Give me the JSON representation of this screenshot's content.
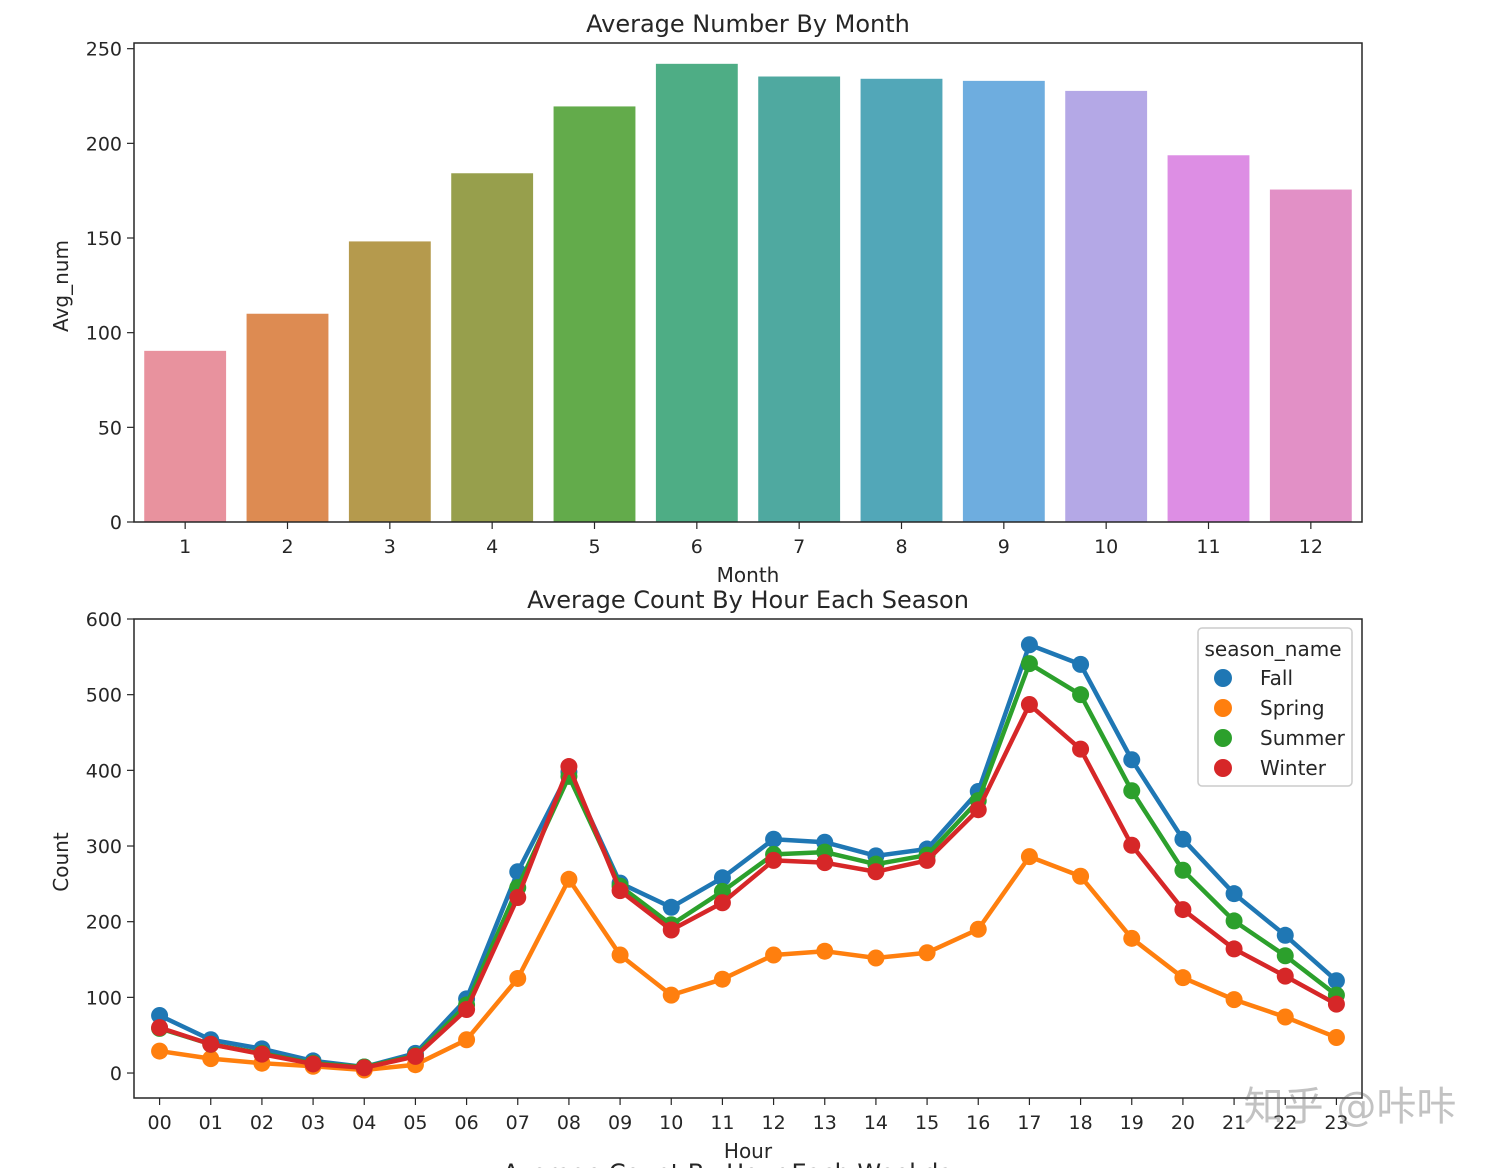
{
  "chart_data": [
    {
      "type": "bar",
      "title": "Average Number By Month",
      "xlabel": "Month",
      "ylabel": "Avg_num",
      "ylim": [
        0,
        253
      ],
      "yticks": [
        0,
        50,
        100,
        150,
        200,
        250
      ],
      "categories": [
        "1",
        "2",
        "3",
        "4",
        "5",
        "6",
        "7",
        "8",
        "9",
        "10",
        "11",
        "12"
      ],
      "values": [
        90.4,
        110.0,
        148.2,
        184.2,
        219.5,
        242.0,
        235.3,
        234.1,
        233.0,
        227.7,
        193.7,
        175.6
      ],
      "colors": [
        "#e8929e",
        "#dd8b52",
        "#b59a4d",
        "#979f4c",
        "#63ab4b",
        "#4ead85",
        "#4fa9a0",
        "#52a7b8",
        "#6eaddf",
        "#b4a8e6",
        "#dd8ee4",
        "#e290c6"
      ]
    },
    {
      "type": "line",
      "title": "Average Count By Hour Each Season",
      "xlabel": "Hour",
      "ylabel": "Count",
      "ylim": [
        -33,
        600
      ],
      "yticks": [
        0,
        100,
        200,
        300,
        400,
        500,
        600
      ],
      "categories": [
        "00",
        "01",
        "02",
        "03",
        "04",
        "05",
        "06",
        "07",
        "08",
        "09",
        "10",
        "11",
        "12",
        "13",
        "14",
        "15",
        "16",
        "17",
        "18",
        "19",
        "20",
        "21",
        "22",
        "23"
      ],
      "legend_title": "season_name",
      "legend_position": "top-right",
      "series": [
        {
          "name": "Fall",
          "color": "#1f77b4",
          "values": [
            76,
            44,
            32,
            16,
            8,
            26,
            98,
            266,
            398,
            251,
            219,
            258,
            309,
            305,
            287,
            296,
            372,
            566,
            540,
            414,
            309,
            237,
            182,
            122
          ]
        },
        {
          "name": "Spring",
          "color": "#ff7f0e",
          "values": [
            29,
            19,
            13,
            9,
            4,
            11,
            44,
            125,
            256,
            156,
            103,
            124,
            156,
            161,
            152,
            159,
            190,
            286,
            260,
            178,
            126,
            97,
            74,
            47
          ]
        },
        {
          "name": "Summer",
          "color": "#2ca02c",
          "values": [
            59,
            38,
            26,
            13,
            8,
            23,
            90,
            245,
            392,
            247,
            196,
            240,
            289,
            292,
            276,
            288,
            360,
            541,
            500,
            373,
            268,
            201,
            155,
            103
          ]
        },
        {
          "name": "Winter",
          "color": "#d62728",
          "values": [
            60,
            38,
            25,
            12,
            7,
            22,
            84,
            232,
            405,
            241,
            189,
            225,
            281,
            278,
            266,
            281,
            348,
            487,
            428,
            301,
            216,
            164,
            128,
            91
          ]
        }
      ]
    }
  ],
  "cut_title": "Average Count By Hour Each Weekday",
  "watermark": "知乎 @咔咔"
}
